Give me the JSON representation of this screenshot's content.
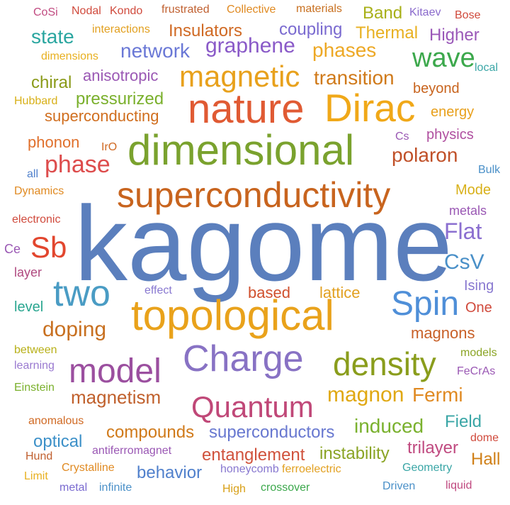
{
  "words": [
    {
      "text": "kagome",
      "weight": 1.0,
      "color": "#5b7fbd"
    },
    {
      "text": "superconductivity",
      "weight": 0.5,
      "color": "#c8641e"
    },
    {
      "text": "dimensional",
      "weight": 0.5,
      "color": "#7aa22e"
    },
    {
      "text": "topological",
      "weight": 0.5,
      "color": "#e9a21b"
    },
    {
      "text": "nature",
      "weight": 0.45,
      "color": "#e05a33"
    },
    {
      "text": "Charge",
      "weight": 0.4,
      "color": "#8872c4"
    },
    {
      "text": "model",
      "weight": 0.4,
      "color": "#9b4f9f"
    },
    {
      "text": "two",
      "weight": 0.4,
      "color": "#4a9cc4"
    },
    {
      "text": "Dirac",
      "weight": 0.4,
      "color": "#f0a818"
    },
    {
      "text": "density",
      "weight": 0.35,
      "color": "#8a9d1c"
    },
    {
      "text": "Spin",
      "weight": 0.35,
      "color": "#4f8fd8"
    },
    {
      "text": "magnetic",
      "weight": 0.32,
      "color": "#e8a11c"
    },
    {
      "text": "Quantum",
      "weight": 0.3,
      "color": "#c04878"
    },
    {
      "text": "wave",
      "weight": 0.3,
      "color": "#3ca84c"
    },
    {
      "text": "Sb",
      "weight": 0.3,
      "color": "#e2462e"
    },
    {
      "text": "phase",
      "weight": 0.25,
      "color": "#dd4c4c"
    },
    {
      "text": "Flat",
      "weight": 0.25,
      "color": "#8b6fd0"
    },
    {
      "text": "polaron",
      "weight": 0.22,
      "color": "#c05028"
    },
    {
      "text": "graphene",
      "weight": 0.22,
      "color": "#8a5ac8"
    },
    {
      "text": "magnon",
      "weight": 0.22,
      "color": "#e0a812"
    },
    {
      "text": "doping",
      "weight": 0.22,
      "color": "#c87020"
    },
    {
      "text": "CsV",
      "weight": 0.22,
      "color": "#4a90c8"
    },
    {
      "text": "transition",
      "weight": 0.2,
      "color": "#d07a1a"
    },
    {
      "text": "phases",
      "weight": 0.2,
      "color": "#eda825"
    },
    {
      "text": "network",
      "weight": 0.2,
      "color": "#6a78d6"
    },
    {
      "text": "magnetism",
      "weight": 0.2,
      "color": "#c0602c"
    },
    {
      "text": "induced",
      "weight": 0.2,
      "color": "#7ab12e"
    },
    {
      "text": "Fermi",
      "weight": 0.2,
      "color": "#e08a22"
    },
    {
      "text": "state",
      "weight": 0.2,
      "color": "#2aa6a0"
    },
    {
      "text": "chiral",
      "weight": 0.18,
      "color": "#8a9a18"
    },
    {
      "text": "pressurized",
      "weight": 0.18,
      "color": "#7ab02c"
    },
    {
      "text": "superconducting",
      "weight": 0.18,
      "color": "#d06e1e"
    },
    {
      "text": "anisotropic",
      "weight": 0.18,
      "color": "#9a58b4"
    },
    {
      "text": "compounds",
      "weight": 0.18,
      "color": "#d07a1a"
    },
    {
      "text": "superconductors",
      "weight": 0.18,
      "color": "#6878d0"
    },
    {
      "text": "entanglement",
      "weight": 0.18,
      "color": "#d0523c"
    },
    {
      "text": "instability",
      "weight": 0.18,
      "color": "#8aa424"
    },
    {
      "text": "optical",
      "weight": 0.18,
      "color": "#3c90c8"
    },
    {
      "text": "behavior",
      "weight": 0.18,
      "color": "#5080cc"
    },
    {
      "text": "trilayer",
      "weight": 0.18,
      "color": "#c04a80"
    },
    {
      "text": "Hall",
      "weight": 0.18,
      "color": "#d08018"
    },
    {
      "text": "Field",
      "weight": 0.18,
      "color": "#3aa6a6"
    },
    {
      "text": "magnons",
      "weight": 0.18,
      "color": "#c86028"
    },
    {
      "text": "based",
      "weight": 0.18,
      "color": "#d0502e"
    },
    {
      "text": "lattice",
      "weight": 0.18,
      "color": "#e2a020"
    },
    {
      "text": "Insulators",
      "weight": 0.18,
      "color": "#d06a24"
    },
    {
      "text": "coupling",
      "weight": 0.18,
      "color": "#7a6ad0"
    },
    {
      "text": "Thermal",
      "weight": 0.18,
      "color": "#e8b020"
    },
    {
      "text": "Higher",
      "weight": 0.18,
      "color": "#9a58b8"
    },
    {
      "text": "Band",
      "weight": 0.18,
      "color": "#a8b018"
    },
    {
      "text": "beyond",
      "weight": 0.16,
      "color": "#c8641e"
    },
    {
      "text": "energy",
      "weight": 0.16,
      "color": "#e8a01c"
    },
    {
      "text": "physics",
      "weight": 0.16,
      "color": "#b050a0"
    },
    {
      "text": "phonon",
      "weight": 0.16,
      "color": "#e0702c"
    },
    {
      "text": "Ising",
      "weight": 0.16,
      "color": "#8878d0"
    },
    {
      "text": "One",
      "weight": 0.16,
      "color": "#d04a3c"
    },
    {
      "text": "metals",
      "weight": 0.14,
      "color": "#9a58b4"
    },
    {
      "text": "Mode",
      "weight": 0.14,
      "color": "#d8b018"
    },
    {
      "text": "level",
      "weight": 0.14,
      "color": "#2aa690"
    },
    {
      "text": "layer",
      "weight": 0.14,
      "color": "#b04a80"
    },
    {
      "text": "Ce",
      "weight": 0.14,
      "color": "#9a58b4"
    },
    {
      "text": "Nodal",
      "weight": 0.12,
      "color": "#d04a3c"
    },
    {
      "text": "Kondo",
      "weight": 0.12,
      "color": "#d04a3c"
    },
    {
      "text": "CoSi",
      "weight": 0.12,
      "color": "#c04a80"
    },
    {
      "text": "frustrated",
      "weight": 0.12,
      "color": "#c06030"
    },
    {
      "text": "Collective",
      "weight": 0.12,
      "color": "#e08a22"
    },
    {
      "text": "materials",
      "weight": 0.12,
      "color": "#c87020"
    },
    {
      "text": "Kitaev",
      "weight": 0.12,
      "color": "#8a6acc"
    },
    {
      "text": "Bose",
      "weight": 0.12,
      "color": "#d04a3c"
    },
    {
      "text": "interactions",
      "weight": 0.12,
      "color": "#e2a020"
    },
    {
      "text": "dimensions",
      "weight": 0.12,
      "color": "#e8b020"
    },
    {
      "text": "local",
      "weight": 0.12,
      "color": "#3aa6a6"
    },
    {
      "text": "Hubbard",
      "weight": 0.12,
      "color": "#d8b018"
    },
    {
      "text": "Cs",
      "weight": 0.12,
      "color": "#9a58b4"
    },
    {
      "text": "IrO",
      "weight": 0.12,
      "color": "#d06a24"
    },
    {
      "text": "all",
      "weight": 0.12,
      "color": "#5080cc"
    },
    {
      "text": "Bulk",
      "weight": 0.12,
      "color": "#4a90c8"
    },
    {
      "text": "Dynamics",
      "weight": 0.12,
      "color": "#e08a22"
    },
    {
      "text": "electronic",
      "weight": 0.12,
      "color": "#d04a3c"
    },
    {
      "text": "effect",
      "weight": 0.12,
      "color": "#8878d0"
    },
    {
      "text": "between",
      "weight": 0.12,
      "color": "#b8b018"
    },
    {
      "text": "models",
      "weight": 0.12,
      "color": "#8aa424"
    },
    {
      "text": "learning",
      "weight": 0.12,
      "color": "#9a7ad0"
    },
    {
      "text": "FeCrAs",
      "weight": 0.12,
      "color": "#9a58b4"
    },
    {
      "text": "Einstein",
      "weight": 0.12,
      "color": "#7ab02c"
    },
    {
      "text": "anomalous",
      "weight": 0.12,
      "color": "#d06a24"
    },
    {
      "text": "antiferromagnet",
      "weight": 0.12,
      "color": "#9a58b4"
    },
    {
      "text": "dome",
      "weight": 0.12,
      "color": "#d04a3c"
    },
    {
      "text": "Hund",
      "weight": 0.12,
      "color": "#c06030"
    },
    {
      "text": "Crystalline",
      "weight": 0.12,
      "color": "#e08a22"
    },
    {
      "text": "honeycomb",
      "weight": 0.12,
      "color": "#8878d0"
    },
    {
      "text": "ferroelectric",
      "weight": 0.12,
      "color": "#e2a020"
    },
    {
      "text": "Geometry",
      "weight": 0.12,
      "color": "#3aa6a6"
    },
    {
      "text": "Limit",
      "weight": 0.12,
      "color": "#e8b020"
    },
    {
      "text": "metal",
      "weight": 0.12,
      "color": "#7a6ad0"
    },
    {
      "text": "infinite",
      "weight": 0.12,
      "color": "#4a90c8"
    },
    {
      "text": "High",
      "weight": 0.12,
      "color": "#d8a018"
    },
    {
      "text": "crossover",
      "weight": 0.12,
      "color": "#3ca84c"
    },
    {
      "text": "Driven",
      "weight": 0.12,
      "color": "#4a90c8"
    },
    {
      "text": "liquid",
      "weight": 0.12,
      "color": "#c04a80"
    }
  ]
}
